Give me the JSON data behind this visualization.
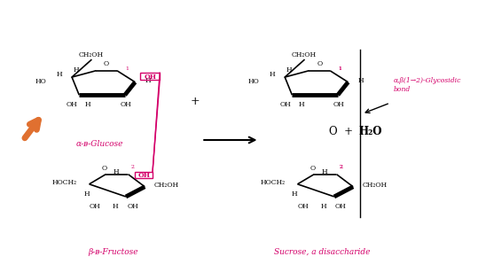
{
  "bg_color": "#ffffff",
  "figsize": [
    5.39,
    3.16
  ],
  "dpi": 100,
  "arrow_color": "#E07030",
  "pink_color": "#D4006A",
  "black_color": "#000000",
  "glucose_label": "α-ᴃ-Glucose",
  "fructose_label": "β-ᴃ-Fructose",
  "sucrose_label": "Sucrose, a disaccharide",
  "bond_label": "α,β(1→2)-Glycosidic\nbond",
  "product_text1": "O  +  ",
  "product_text2": "H₂O"
}
